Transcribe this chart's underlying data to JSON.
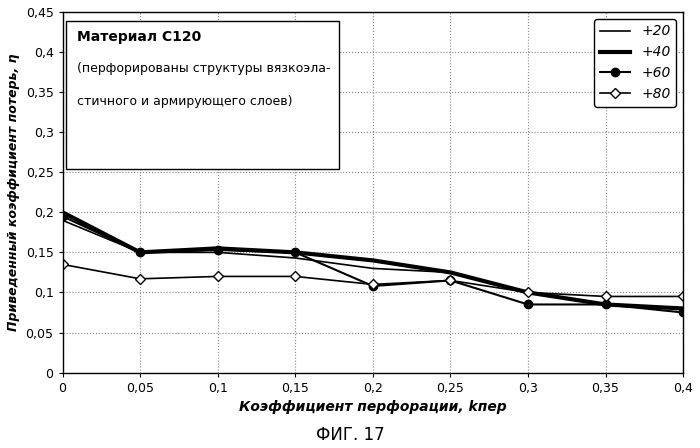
{
  "title": "ФИГ. 17",
  "xlabel_main": "Коэффициент перфорации, ",
  "xlabel_k": "k",
  "xlabel_sub": "пер",
  "ylabel": "Приведенный коэффициент потерь, η",
  "annotation_line1": "Материал С120",
  "annotation_line2": "(перфорированы структуры вязкоэла-",
  "annotation_line3": "стичного и армирующего слоев)",
  "xlim": [
    0,
    0.4
  ],
  "ylim": [
    0,
    0.45
  ],
  "xticks": [
    0,
    0.05,
    0.1,
    0.15,
    0.2,
    0.25,
    0.3,
    0.35,
    0.4
  ],
  "yticks": [
    0,
    0.05,
    0.1,
    0.15,
    0.2,
    0.25,
    0.3,
    0.35,
    0.4,
    0.45
  ],
  "series": [
    {
      "label": "+20",
      "x": [
        0,
        0.05,
        0.1,
        0.15,
        0.2,
        0.25,
        0.3,
        0.35,
        0.4
      ],
      "y": [
        0.19,
        0.15,
        0.15,
        0.143,
        0.13,
        0.125,
        0.1,
        0.085,
        0.08
      ],
      "color": "#000000",
      "linewidth": 1.2,
      "marker": null,
      "markerfacecolor": "#000000",
      "markersize": 0
    },
    {
      "label": "+40",
      "x": [
        0,
        0.05,
        0.1,
        0.15,
        0.2,
        0.25,
        0.3,
        0.35,
        0.4
      ],
      "y": [
        0.2,
        0.15,
        0.155,
        0.15,
        0.14,
        0.125,
        0.1,
        0.085,
        0.08
      ],
      "color": "#000000",
      "linewidth": 3.0,
      "marker": null,
      "markerfacecolor": "#000000",
      "markersize": 0
    },
    {
      "label": "+60",
      "x": [
        0,
        0.05,
        0.1,
        0.15,
        0.2,
        0.25,
        0.3,
        0.35,
        0.4
      ],
      "y": [
        0.195,
        0.15,
        0.153,
        0.15,
        0.108,
        0.115,
        0.085,
        0.085,
        0.075
      ],
      "color": "#000000",
      "linewidth": 1.5,
      "marker": "o",
      "markerfacecolor": "#000000",
      "markersize": 6
    },
    {
      "label": "+80",
      "x": [
        0,
        0.05,
        0.1,
        0.15,
        0.2,
        0.25,
        0.3,
        0.35,
        0.4
      ],
      "y": [
        0.135,
        0.117,
        0.12,
        0.12,
        0.11,
        0.115,
        0.1,
        0.095,
        0.095
      ],
      "color": "#000000",
      "linewidth": 1.2,
      "marker": "D",
      "markerfacecolor": "#ffffff",
      "markersize": 5
    }
  ],
  "background_color": "#ffffff",
  "grid_color": "#888888",
  "figsize": [
    7.0,
    4.48
  ],
  "dpi": 100
}
